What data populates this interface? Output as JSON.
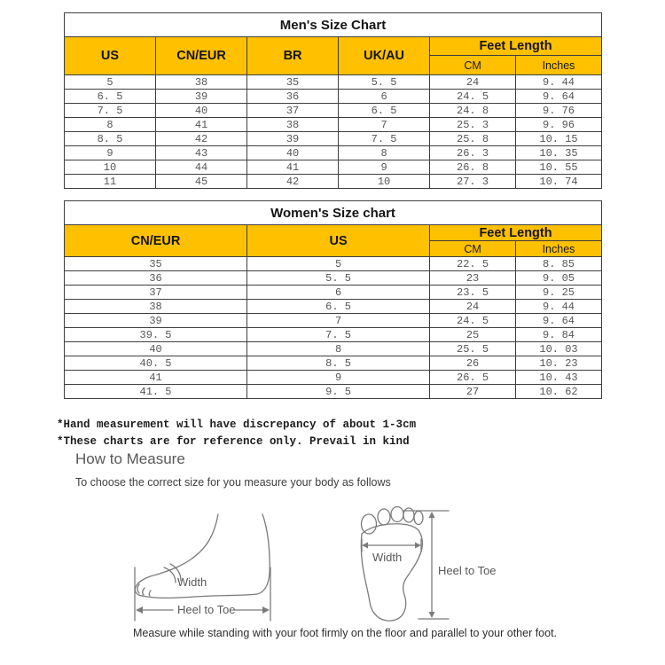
{
  "colors": {
    "header_fill": "#FFC000",
    "cell_text": "#565656",
    "heading_gray": "#595959"
  },
  "men_table": {
    "title": "Men's Size Chart",
    "columns": [
      "US",
      "CN/EUR",
      "BR",
      "UK/AU"
    ],
    "feet_length": {
      "label": "Feet Length",
      "sub": [
        "CM",
        "Inches"
      ]
    },
    "rows": [
      [
        "5",
        "38",
        "35",
        "5. 5",
        "24",
        "9. 44"
      ],
      [
        "6. 5",
        "39",
        "36",
        "6",
        "24. 5",
        "9. 64"
      ],
      [
        "7. 5",
        "40",
        "37",
        "6. 5",
        "24. 8",
        "9. 76"
      ],
      [
        "8",
        "41",
        "38",
        "7",
        "25. 3",
        "9. 96"
      ],
      [
        "8. 5",
        "42",
        "39",
        "7. 5",
        "25. 8",
        "10. 15"
      ],
      [
        "9",
        "43",
        "40",
        "8",
        "26. 3",
        "10. 35"
      ],
      [
        "10",
        "44",
        "41",
        "9",
        "26. 8",
        "10. 55"
      ],
      [
        "11",
        "45",
        "42",
        "10",
        "27. 3",
        "10. 74"
      ]
    ]
  },
  "women_table": {
    "title": "Women's Size chart",
    "columns": [
      "CN/EUR",
      "US"
    ],
    "feet_length": {
      "label": "Feet Length",
      "sub": [
        "CM",
        "Inches"
      ]
    },
    "rows": [
      [
        "35",
        "5",
        "22. 5",
        "8. 85"
      ],
      [
        "36",
        "5. 5",
        "23",
        "9. 05"
      ],
      [
        "37",
        "6",
        "23. 5",
        "9. 25"
      ],
      [
        "38",
        "6. 5",
        "24",
        "9. 44"
      ],
      [
        "39",
        "7",
        "24. 5",
        "9. 64"
      ],
      [
        "39. 5",
        "7. 5",
        "25",
        "9. 84"
      ],
      [
        "40",
        "8",
        "25. 5",
        "10. 03"
      ],
      [
        "40. 5",
        "8. 5",
        "26",
        "10. 23"
      ],
      [
        "41",
        "9",
        "26. 5",
        "10. 43"
      ],
      [
        "41. 5",
        "9. 5",
        "27",
        "10. 62"
      ]
    ]
  },
  "notes": {
    "line1": "*Hand measurement will have discrepancy of about 1-3cm",
    "line2": "*These charts are for reference only. Prevail in kind"
  },
  "measure": {
    "heading": "How to Measure",
    "intro": "To choose the correct size for you measure your body as follows",
    "side_diagram": {
      "width_label": "Width",
      "length_label": "Heel to Toe"
    },
    "sole_diagram": {
      "width_label": "Width",
      "length_label": "Heel to Toe"
    },
    "caption": "Measure while standing with your foot firmly on the floor and parallel to your other foot."
  }
}
